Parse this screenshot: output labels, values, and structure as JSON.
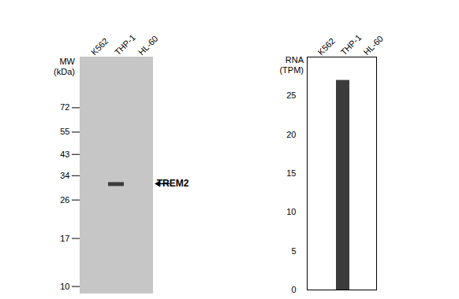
{
  "chart_data": [
    {
      "type": "western_blot",
      "y_label": "MW (kDa)",
      "categories": [
        "K562",
        "THP-1",
        "HL-60"
      ],
      "values": [
        null,
        31,
        null
      ],
      "log": "y",
      "ylim": [
        9.3,
        126
      ],
      "yticks": [
        10,
        17,
        26,
        34,
        43,
        55,
        72
      ],
      "annotations": [
        {
          "text": "TREM2",
          "y": 31
        }
      ],
      "color": "#3c3c3c"
    },
    {
      "type": "bar",
      "y_label": "RNA (TPM)",
      "categories": [
        "K562",
        "THP-1",
        "HL-60"
      ],
      "values": [
        0,
        27,
        0
      ],
      "color": "#3c3c3c",
      "ylim": [
        0,
        30
      ],
      "yticks": [
        0,
        5,
        10,
        15,
        20,
        25
      ]
    }
  ]
}
